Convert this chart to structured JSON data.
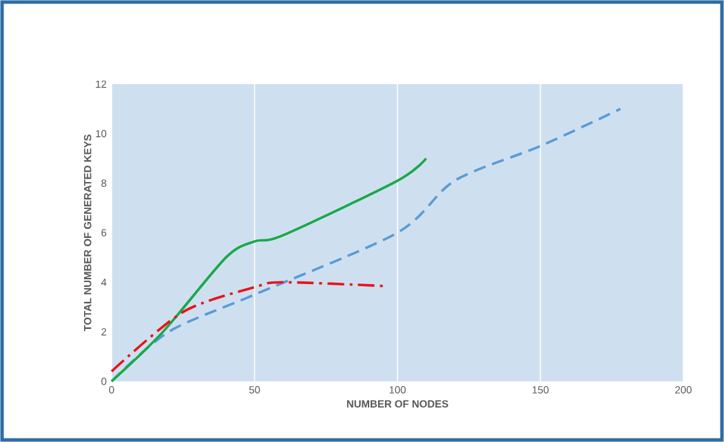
{
  "chart_data": {
    "type": "line",
    "xlabel": "NUMBER OF NODES",
    "ylabel": "TOTAL NUMBER OF GENERATED KEYS",
    "xlim": [
      0,
      200
    ],
    "ylim": [
      0,
      12
    ],
    "xticks": [
      0,
      50,
      100,
      150,
      200
    ],
    "yticks": [
      0,
      2,
      4,
      6,
      8,
      10,
      12
    ],
    "grid": "x",
    "series": [
      {
        "color": "#5b9bd5",
        "line_style": "dashed",
        "x": [
          0,
          20,
          50,
          100,
          120,
          150,
          178
        ],
        "values": [
          0,
          2.0,
          3.5,
          6.0,
          8.1,
          9.5,
          11.0
        ]
      },
      {
        "color": "#1aa84a",
        "line_style": "solid",
        "x": [
          0,
          18,
          40,
          50,
          60,
          100,
          110
        ],
        "values": [
          0,
          2.0,
          5.0,
          5.65,
          5.9,
          8.1,
          9.0
        ]
      },
      {
        "color": "#e8141b",
        "line_style": "dashdot",
        "x": [
          0,
          25,
          50,
          60,
          95
        ],
        "values": [
          0.4,
          2.8,
          3.8,
          4.0,
          3.85
        ]
      }
    ]
  }
}
